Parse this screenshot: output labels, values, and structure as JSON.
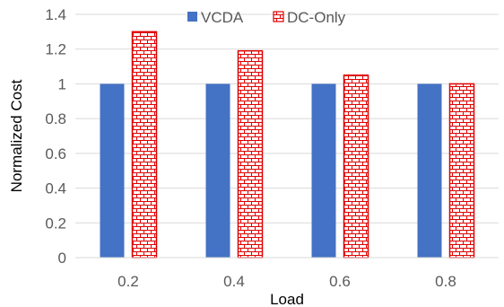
{
  "chart_data": {
    "type": "bar",
    "categories": [
      "0.2",
      "0.4",
      "0.6",
      "0.8"
    ],
    "series": [
      {
        "name": "VCDA",
        "values": [
          1.0,
          1.0,
          1.0,
          1.0
        ],
        "color": "#4472C4",
        "pattern": "solid"
      },
      {
        "name": "DC-Only",
        "values": [
          1.3,
          1.19,
          1.05,
          1.0
        ],
        "color": "#E00000",
        "pattern": "brick"
      }
    ],
    "xlabel": "Load",
    "ylabel": "Normalized Cost",
    "ylim": [
      0,
      1.4
    ],
    "yticks": [
      "0",
      "0.2",
      "0.4",
      "0.6",
      "0.8",
      "1",
      "1.2",
      "1.4"
    ],
    "grid": true,
    "legend_position": "top"
  }
}
